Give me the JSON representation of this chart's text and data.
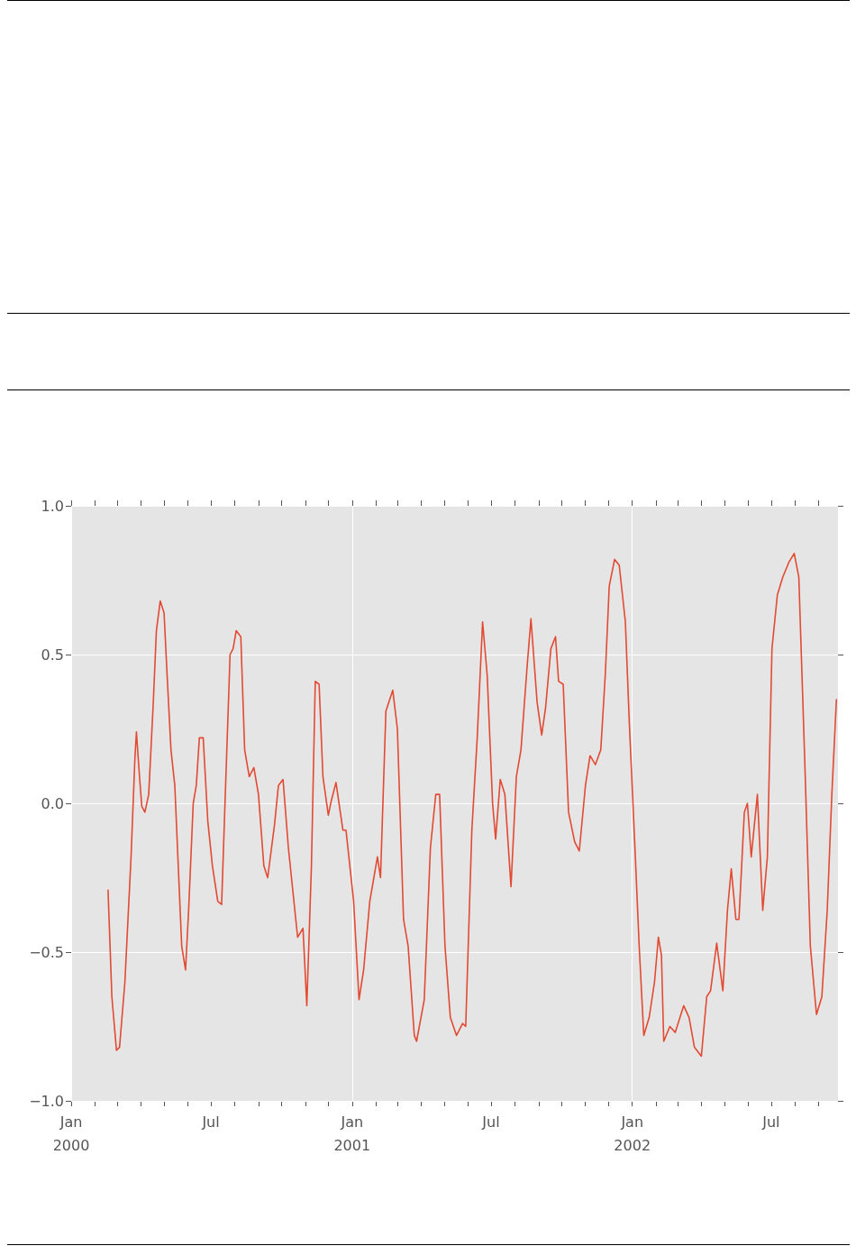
{
  "chart_data": {
    "type": "line",
    "x": [
      "2000-02-18",
      "2000-02-23",
      "2000-02-29",
      "2000-03-04",
      "2000-03-11",
      "2000-03-19",
      "2000-03-24",
      "2000-03-26",
      "2000-03-30",
      "2000-04-02",
      "2000-04-06",
      "2000-04-11",
      "2000-04-17",
      "2000-04-21",
      "2000-04-26",
      "2000-05-01",
      "2000-05-05",
      "2000-05-10",
      "2000-05-15",
      "2000-05-19",
      "2000-05-24",
      "2000-05-29",
      "2000-06-02",
      "2000-06-08",
      "2000-06-12",
      "2000-06-16",
      "2000-06-21",
      "2000-06-27",
      "2000-07-03",
      "2000-07-10",
      "2000-07-15",
      "2000-07-19",
      "2000-07-26",
      "2000-07-30",
      "2000-08-03",
      "2000-08-09",
      "2000-08-14",
      "2000-08-20",
      "2000-08-26",
      "2000-09-01",
      "2000-09-08",
      "2000-09-13",
      "2000-09-22",
      "2000-09-27",
      "2000-10-03",
      "2000-10-10",
      "2000-10-16",
      "2000-10-22",
      "2000-10-29",
      "2000-11-03",
      "2000-11-09",
      "2000-11-14",
      "2000-11-19",
      "2000-11-24",
      "2000-12-01",
      "2000-12-05",
      "2000-12-11",
      "2000-12-20",
      "2000-12-24",
      "2001-01-03",
      "2001-01-10",
      "2001-01-16",
      "2001-01-24",
      "2001-02-03",
      "2001-02-07",
      "2001-02-14",
      "2001-02-23",
      "2001-03-01",
      "2001-03-09",
      "2001-03-15",
      "2001-03-23",
      "2001-03-26",
      "2001-04-05",
      "2001-04-13",
      "2001-04-20",
      "2001-04-25",
      "2001-05-02",
      "2001-05-09",
      "2001-05-17",
      "2001-05-25",
      "2001-05-29",
      "2001-06-06",
      "2001-06-13",
      "2001-06-20",
      "2001-06-26",
      "2001-07-03",
      "2001-07-07",
      "2001-07-13",
      "2001-07-19",
      "2001-07-27",
      "2001-08-03",
      "2001-08-09",
      "2001-08-17",
      "2001-08-22",
      "2001-08-30",
      "2001-09-05",
      "2001-09-10",
      "2001-09-17",
      "2001-09-23",
      "2001-09-27",
      "2001-10-03",
      "2001-10-10",
      "2001-10-18",
      "2001-10-24",
      "2001-11-01",
      "2001-11-07",
      "2001-11-14",
      "2001-11-21",
      "2001-11-27",
      "2001-12-02",
      "2001-12-09",
      "2001-12-15",
      "2001-12-23",
      "2001-12-28",
      "2002-01-05",
      "2002-01-10",
      "2002-01-16",
      "2002-01-23",
      "2002-01-30",
      "2002-02-04",
      "2002-02-08",
      "2002-02-11",
      "2002-02-19",
      "2002-02-26",
      "2002-03-09",
      "2002-03-16",
      "2002-03-23",
      "2002-04-01",
      "2002-04-08",
      "2002-04-13",
      "2002-04-21",
      "2002-04-29",
      "2002-05-05",
      "2002-05-10",
      "2002-05-16",
      "2002-05-20",
      "2002-05-27",
      "2002-05-31",
      "2002-06-05",
      "2002-06-13",
      "2002-06-20",
      "2002-06-26",
      "2002-07-02",
      "2002-07-09",
      "2002-07-16",
      "2002-07-24",
      "2002-07-31",
      "2002-08-06",
      "2002-08-14",
      "2002-08-21",
      "2002-08-29",
      "2002-09-05",
      "2002-09-12",
      "2002-09-18",
      "2002-09-24"
    ],
    "series": [
      {
        "color": "#e24a33",
        "values": [
          -0.29,
          -0.65,
          -0.83,
          -0.82,
          -0.6,
          -0.18,
          0.15,
          0.24,
          0.09,
          -0.01,
          -0.03,
          0.03,
          0.34,
          0.58,
          0.68,
          0.64,
          0.43,
          0.18,
          0.06,
          -0.18,
          -0.48,
          -0.56,
          -0.36,
          0.0,
          0.06,
          0.22,
          0.22,
          -0.06,
          -0.21,
          -0.33,
          -0.34,
          -0.03,
          0.5,
          0.52,
          0.58,
          0.56,
          0.18,
          0.09,
          0.12,
          0.03,
          -0.21,
          -0.25,
          -0.07,
          0.06,
          0.08,
          -0.15,
          -0.3,
          -0.45,
          -0.42,
          -0.68,
          -0.21,
          0.41,
          0.4,
          0.09,
          -0.04,
          0.01,
          0.07,
          -0.09,
          -0.09,
          -0.33,
          -0.66,
          -0.56,
          -0.33,
          -0.18,
          -0.25,
          0.31,
          0.38,
          0.25,
          -0.39,
          -0.48,
          -0.78,
          -0.8,
          -0.66,
          -0.15,
          0.03,
          0.03,
          -0.48,
          -0.72,
          -0.78,
          -0.74,
          -0.75,
          -0.09,
          0.22,
          0.61,
          0.43,
          0.0,
          -0.12,
          0.08,
          0.03,
          -0.28,
          0.09,
          0.18,
          0.46,
          0.62,
          0.34,
          0.23,
          0.32,
          0.52,
          0.56,
          0.41,
          0.4,
          -0.03,
          -0.13,
          -0.16,
          0.06,
          0.16,
          0.13,
          0.18,
          0.44,
          0.73,
          0.82,
          0.8,
          0.61,
          0.28,
          -0.18,
          -0.48,
          -0.78,
          -0.72,
          -0.6,
          -0.45,
          -0.51,
          -0.8,
          -0.75,
          -0.77,
          -0.68,
          -0.72,
          -0.82,
          -0.85,
          -0.65,
          -0.63,
          -0.47,
          -0.63,
          -0.36,
          -0.22,
          -0.39,
          -0.39,
          -0.03,
          0.0,
          -0.18,
          0.03,
          -0.36,
          -0.18,
          0.52,
          0.7,
          0.76,
          0.81,
          0.84,
          0.76,
          0.12,
          -0.48,
          -0.71,
          -0.65,
          -0.36,
          0.03,
          0.35
        ]
      }
    ],
    "xlim": [
      "2000-01-01",
      "2002-09-26"
    ],
    "xticks": [
      {
        "value": "2000-01",
        "label": "Jan\n2000"
      },
      {
        "value": "2000-02",
        "label": null
      },
      {
        "value": "2000-03",
        "label": null
      },
      {
        "value": "2000-04",
        "label": null
      },
      {
        "value": "2000-05",
        "label": null
      },
      {
        "value": "2000-06",
        "label": null
      },
      {
        "value": "2000-07",
        "label": "Jul"
      },
      {
        "value": "2000-08",
        "label": null
      },
      {
        "value": "2000-09",
        "label": null
      },
      {
        "value": "2000-10",
        "label": null
      },
      {
        "value": "2000-11",
        "label": null
      },
      {
        "value": "2000-12",
        "label": null
      },
      {
        "value": "2001-01",
        "label": "Jan\n2001"
      },
      {
        "value": "2001-02",
        "label": null
      },
      {
        "value": "2001-03",
        "label": null
      },
      {
        "value": "2001-04",
        "label": null
      },
      {
        "value": "2001-05",
        "label": null
      },
      {
        "value": "2001-06",
        "label": null
      },
      {
        "value": "2001-07",
        "label": "Jul"
      },
      {
        "value": "2001-08",
        "label": null
      },
      {
        "value": "2001-09",
        "label": null
      },
      {
        "value": "2001-10",
        "label": null
      },
      {
        "value": "2001-11",
        "label": null
      },
      {
        "value": "2001-12",
        "label": null
      },
      {
        "value": "2002-01",
        "label": "Jan\n2002"
      },
      {
        "value": "2002-02",
        "label": null
      },
      {
        "value": "2002-03",
        "label": null
      },
      {
        "value": "2002-04",
        "label": null
      },
      {
        "value": "2002-05",
        "label": null
      },
      {
        "value": "2002-06",
        "label": null
      },
      {
        "value": "2002-07",
        "label": "Jul"
      },
      {
        "value": "2002-08",
        "label": null
      },
      {
        "value": "2002-09",
        "label": null
      }
    ],
    "ylim": [
      -1.0,
      1.0
    ],
    "yticks": [
      {
        "value": -1.0,
        "label": "−1.0"
      },
      {
        "value": -0.5,
        "label": "−0.5"
      },
      {
        "value": 0.0,
        "label": "0.0"
      },
      {
        "value": 0.5,
        "label": "0.5"
      },
      {
        "value": 1.0,
        "label": "1.0"
      }
    ],
    "grid": true,
    "line_style": "solid",
    "marker": "none"
  }
}
